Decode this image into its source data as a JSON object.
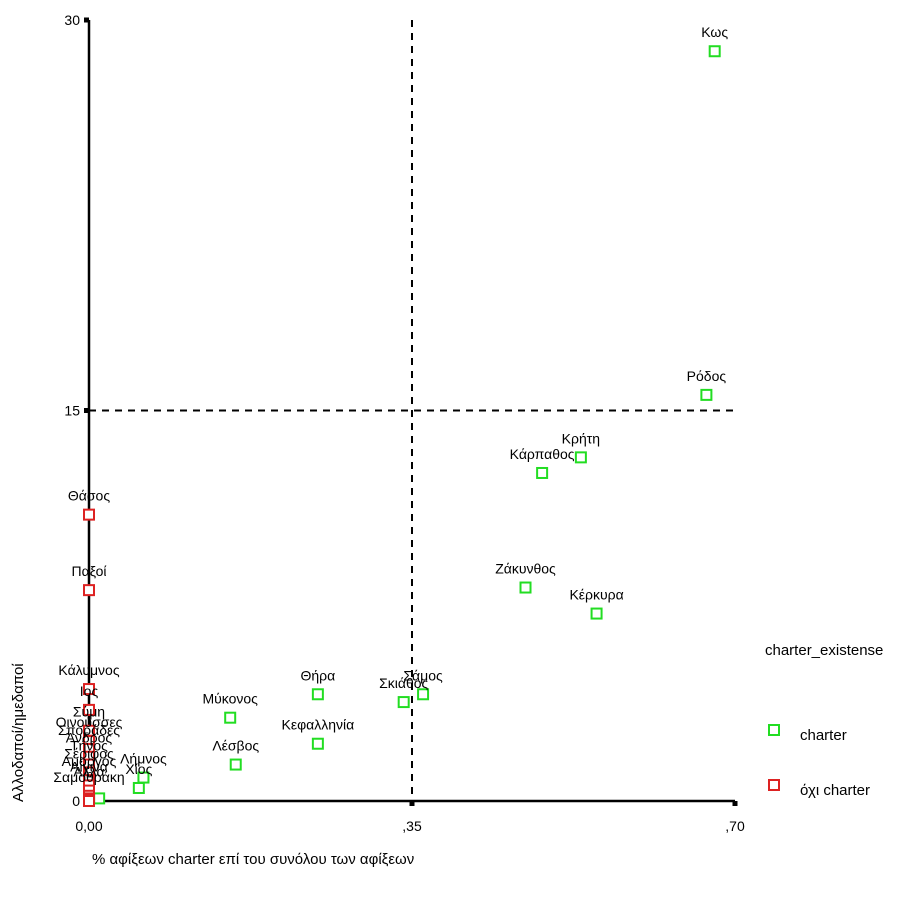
{
  "chart_data": {
    "type": "scatter",
    "xlabel": "% αφίξεων charter επί του συνόλου των αφίξεων",
    "ylabel": "Αλλοδαποί/ημεδαποί",
    "xlim": [
      0,
      0.7
    ],
    "ylim": [
      0,
      30
    ],
    "x_ticks": [
      {
        "value": 0,
        "label": "0,00"
      },
      {
        "value": 0.35,
        "label": ",35"
      },
      {
        "value": 0.7,
        "label": ",70"
      }
    ],
    "y_ticks": [
      {
        "value": 0,
        "label": "0"
      },
      {
        "value": 15,
        "label": "15"
      },
      {
        "value": 30,
        "label": "30"
      }
    ],
    "reference_lines": {
      "x": 0.35,
      "y": 15
    },
    "legend": {
      "title": "charter_existense",
      "placement": "right",
      "entries": [
        {
          "name": "charter",
          "color": "#22dd22"
        },
        {
          "name": "όχι charter",
          "color": "#dd2222"
        }
      ]
    },
    "series": [
      {
        "name": "charter",
        "color": "#22dd22",
        "points": [
          {
            "label": "Κως",
            "x": 0.678,
            "y": 28.8
          },
          {
            "label": "Ρόδος",
            "x": 0.669,
            "y": 15.6
          },
          {
            "label": "Κρήτη",
            "x": 0.533,
            "y": 13.2
          },
          {
            "label": "Κάρπαθος",
            "x": 0.491,
            "y": 12.6
          },
          {
            "label": "Ζάκυνθος",
            "x": 0.473,
            "y": 8.2
          },
          {
            "label": "Κέρκυρα",
            "x": 0.55,
            "y": 7.2
          },
          {
            "label": "Σάμος",
            "x": 0.362,
            "y": 4.1
          },
          {
            "label": "Σκιάθος",
            "x": 0.341,
            "y": 3.8
          },
          {
            "label": "Θήρα",
            "x": 0.248,
            "y": 4.1
          },
          {
            "label": "Κεφαλληνία",
            "x": 0.248,
            "y": 2.2
          },
          {
            "label": "Μύκονος",
            "x": 0.153,
            "y": 3.2
          },
          {
            "label": "Λέσβος",
            "x": 0.159,
            "y": 1.4
          },
          {
            "label": "Λήμνος",
            "x": 0.059,
            "y": 0.9
          },
          {
            "label": "Χίος",
            "x": 0.054,
            "y": 0.5
          },
          {
            "label": "",
            "x": 0.011,
            "y": 0.1
          }
        ]
      },
      {
        "name": "όχι charter",
        "color": "#dd2222",
        "points": [
          {
            "label": "Θάσος",
            "x": 0.0,
            "y": 11.0
          },
          {
            "label": "Παξοί",
            "x": 0.0,
            "y": 8.1
          },
          {
            "label": "Κάλυμνος",
            "x": 0.0,
            "y": 4.3
          },
          {
            "label": "Ιος",
            "x": 0.0,
            "y": 3.5
          },
          {
            "label": "Σύμη",
            "x": 0.0,
            "y": 2.7
          },
          {
            "label": "Οινούσσες",
            "x": 0.0,
            "y": 2.3
          },
          {
            "label": "Σποράδες",
            "x": 0.0,
            "y": 2.0
          },
          {
            "label": "Άνδρος",
            "x": 0.0,
            "y": 1.7
          },
          {
            "label": "Τήνος",
            "x": 0.0,
            "y": 1.4
          },
          {
            "label": "Σέριφος",
            "x": 0.0,
            "y": 1.1
          },
          {
            "label": "Αμοργός",
            "x": 0.0,
            "y": 0.8
          },
          {
            "label": "Αίγινα",
            "x": 0.0,
            "y": 0.6
          },
          {
            "label": "Άλλα",
            "x": 0.0,
            "y": 0.4
          },
          {
            "label": "Σαμοθράκη",
            "x": 0.0,
            "y": 0.2
          },
          {
            "label": "",
            "x": 0.0,
            "y": 0.1
          },
          {
            "label": "",
            "x": 0.0,
            "y": 0.05
          },
          {
            "label": "",
            "x": 0.0,
            "y": 0.0
          }
        ]
      }
    ]
  }
}
